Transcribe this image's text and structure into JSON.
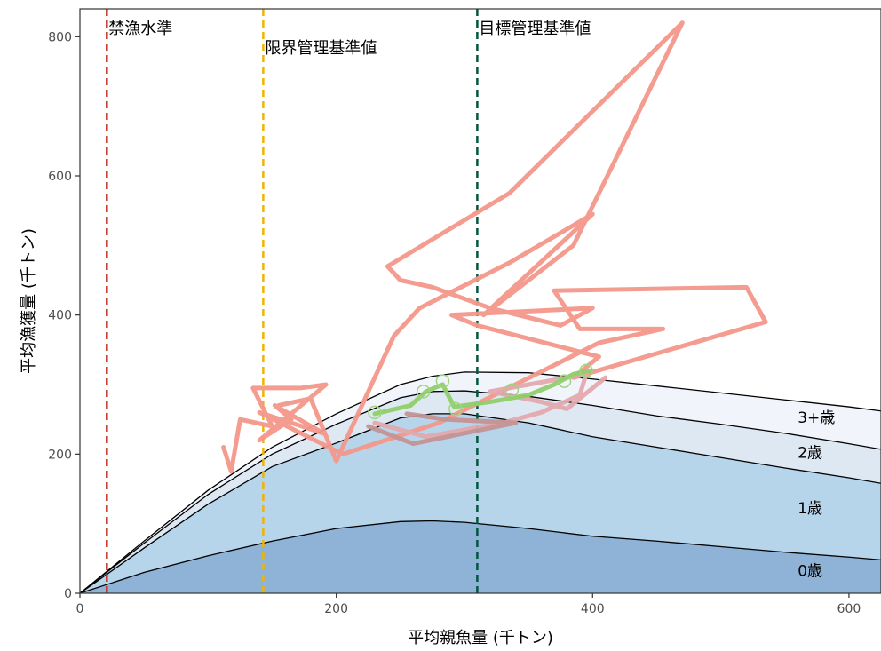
{
  "chart_data": {
    "type": "area",
    "xlabel": "平均親魚量 (千トン)",
    "ylabel": "平均漁獲量 (千トン)",
    "xlim": [
      0,
      625
    ],
    "ylim": [
      0,
      840
    ],
    "x_ticks": [
      0,
      200,
      400,
      600
    ],
    "y_ticks": [
      0,
      200,
      400,
      600,
      800
    ],
    "grid": false,
    "stack_x": [
      0,
      50,
      100,
      150,
      200,
      250,
      275,
      300,
      350,
      400,
      450,
      500,
      550,
      600,
      625
    ],
    "bands": [
      {
        "name": "0歳",
        "color": "#8eb3d6",
        "values": [
          0,
          30,
          54,
          75,
          93,
          103,
          104,
          102,
          93,
          82,
          75,
          67,
          59,
          52,
          48
        ]
      },
      {
        "name": "1歳",
        "color": "#b6d4ea",
        "values": [
          0,
          65,
          128,
          182,
          216,
          252,
          258,
          258,
          245,
          225,
          210,
          195,
          180,
          166,
          158
        ]
      },
      {
        "name": "2歳",
        "color": "#dde8f2",
        "values": [
          0,
          72,
          142,
          200,
          243,
          281,
          290,
          291,
          283,
          270,
          255,
          243,
          230,
          215,
          207
        ]
      },
      {
        "name": "3+歳",
        "color": "#f1f5fb",
        "values": [
          0,
          75,
          148,
          210,
          258,
          300,
          312,
          318,
          317,
          308,
          298,
          288,
          278,
          268,
          262
        ]
      }
    ],
    "band_labels": [
      {
        "text": "0歳",
        "x": 560,
        "y": 25
      },
      {
        "text": "1歳",
        "x": 560,
        "y": 115
      },
      {
        "text": "2歳",
        "x": 560,
        "y": 195
      },
      {
        "text": "3+歳",
        "x": 560,
        "y": 245
      }
    ],
    "reference_lines": [
      {
        "name": "禁漁水準",
        "x": 21,
        "color": "#c0392b"
      },
      {
        "name": "限界管理基準値",
        "x": 143,
        "color": "#f0b400"
      },
      {
        "name": "目標管理基準値",
        "x": 310,
        "color": "#00573f"
      }
    ],
    "trajectories": [
      {
        "color": "#f4978a",
        "points": [
          [
            112,
            210
          ],
          [
            118,
            175
          ],
          [
            125,
            250
          ],
          [
            150,
            240
          ],
          [
            135,
            295
          ],
          [
            172,
            295
          ],
          [
            192,
            300
          ],
          [
            140,
            220
          ],
          [
            165,
            250
          ],
          [
            152,
            270
          ],
          [
            190,
            230
          ],
          [
            140,
            260
          ],
          [
            205,
            200
          ],
          [
            280,
            245
          ],
          [
            405,
            360
          ],
          [
            455,
            380
          ],
          [
            390,
            380
          ],
          [
            370,
            435
          ],
          [
            520,
            440
          ],
          [
            535,
            390
          ],
          [
            385,
            310
          ],
          [
            405,
            340
          ],
          [
            310,
            385
          ],
          [
            290,
            400
          ],
          [
            400,
            410
          ],
          [
            375,
            385
          ],
          [
            320,
            410
          ],
          [
            275,
            440
          ],
          [
            250,
            450
          ],
          [
            240,
            470
          ],
          [
            335,
            575
          ],
          [
            470,
            820
          ],
          [
            385,
            500
          ],
          [
            315,
            400
          ],
          [
            400,
            545
          ],
          [
            335,
            475
          ],
          [
            265,
            410
          ],
          [
            245,
            370
          ],
          [
            200,
            190
          ],
          [
            180,
            280
          ],
          [
            155,
            270
          ]
        ]
      },
      {
        "color": "#e1a9ad",
        "points": [
          [
            230,
            245
          ],
          [
            270,
            225
          ],
          [
            330,
            245
          ],
          [
            360,
            260
          ],
          [
            390,
            285
          ],
          [
            395,
            315
          ],
          [
            350,
            300
          ],
          [
            320,
            290
          ],
          [
            360,
            275
          ],
          [
            380,
            265
          ],
          [
            410,
            310
          ]
        ]
      },
      {
        "color": "#c49496",
        "points": [
          [
            225,
            240
          ],
          [
            260,
            215
          ],
          [
            300,
            230
          ],
          [
            340,
            245
          ],
          [
            285,
            250
          ],
          [
            255,
            258
          ]
        ]
      },
      {
        "color": "#8fce6a",
        "points": [
          [
            230,
            258
          ],
          [
            258,
            270
          ],
          [
            270,
            290
          ],
          [
            283,
            300
          ],
          [
            292,
            268
          ],
          [
            320,
            275
          ],
          [
            350,
            285
          ],
          [
            370,
            300
          ],
          [
            385,
            315
          ],
          [
            398,
            320
          ]
        ]
      }
    ],
    "open_markers": [
      [
        230,
        260
      ],
      [
        268,
        290
      ],
      [
        283,
        305
      ],
      [
        293,
        265
      ],
      [
        337,
        292
      ],
      [
        378,
        305
      ],
      [
        395,
        320
      ]
    ],
    "marker_color": "#9bd67f"
  }
}
